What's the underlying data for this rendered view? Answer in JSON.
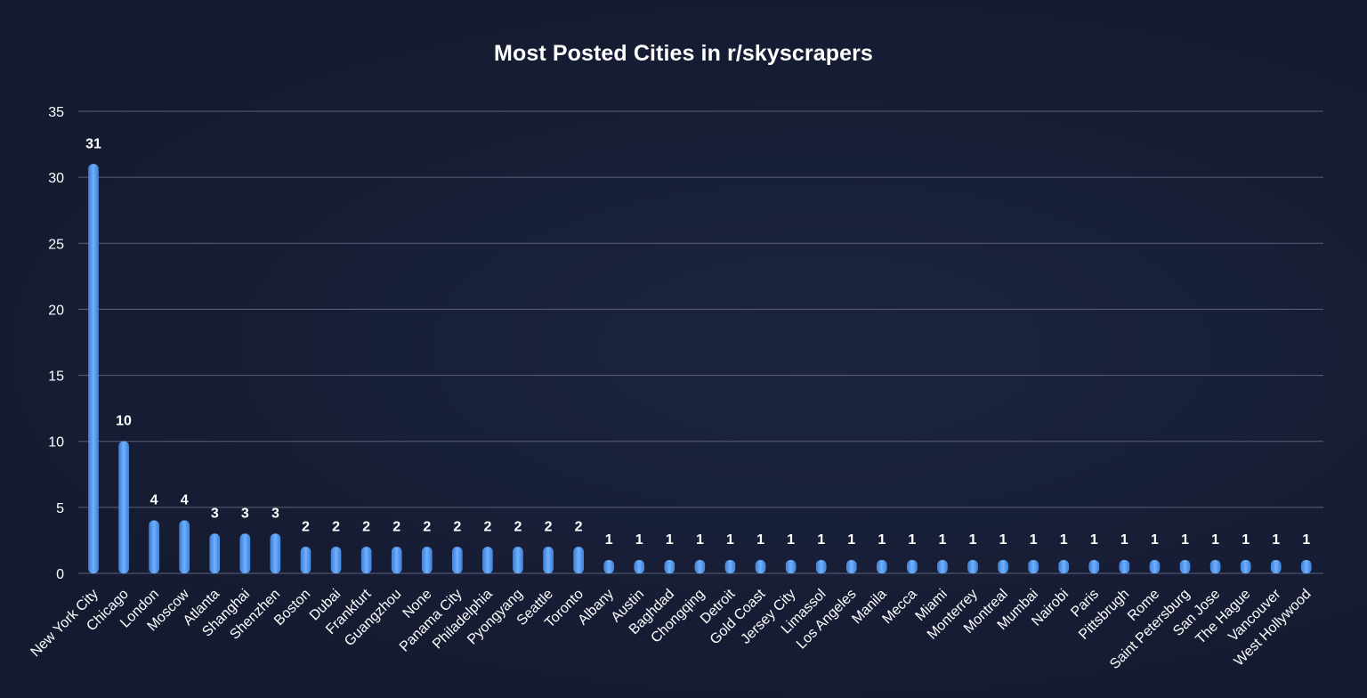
{
  "chart_data": {
    "type": "bar",
    "title": "Most Posted Cities in r/skyscrapers",
    "xlabel": "",
    "ylabel": "",
    "ylim": [
      0,
      35
    ],
    "yticks": [
      0,
      5,
      10,
      15,
      20,
      25,
      30,
      35
    ],
    "grid": true,
    "bar_color": "#5b9ef0",
    "categories": [
      "New York City",
      "Chicago",
      "London",
      "Moscow",
      "Atlanta",
      "Shanghai",
      "Shenzhen",
      "Boston",
      "Dubai",
      "Frankfurt",
      "Guangzhou",
      "None",
      "Panama City",
      "Philadelphia",
      "Pyongyang",
      "Seattle",
      "Toronto",
      "Albany",
      "Austin",
      "Baghdad",
      "Chongqing",
      "Detroit",
      "Gold Coast",
      "Jersey City",
      "Limassol",
      "Los Angeles",
      "Manila",
      "Mecca",
      "Miami",
      "Monterrey",
      "Montreal",
      "Mumbai",
      "Nairobi",
      "Paris",
      "Pittsbrugh",
      "Rome",
      "Saint Petersburg",
      "San Jose",
      "The Hague",
      "Vancouver",
      "West Hollywood"
    ],
    "values": [
      31,
      10,
      4,
      4,
      3,
      3,
      3,
      2,
      2,
      2,
      2,
      2,
      2,
      2,
      2,
      2,
      2,
      1,
      1,
      1,
      1,
      1,
      1,
      1,
      1,
      1,
      1,
      1,
      1,
      1,
      1,
      1,
      1,
      1,
      1,
      1,
      1,
      1,
      1,
      1,
      1
    ]
  }
}
